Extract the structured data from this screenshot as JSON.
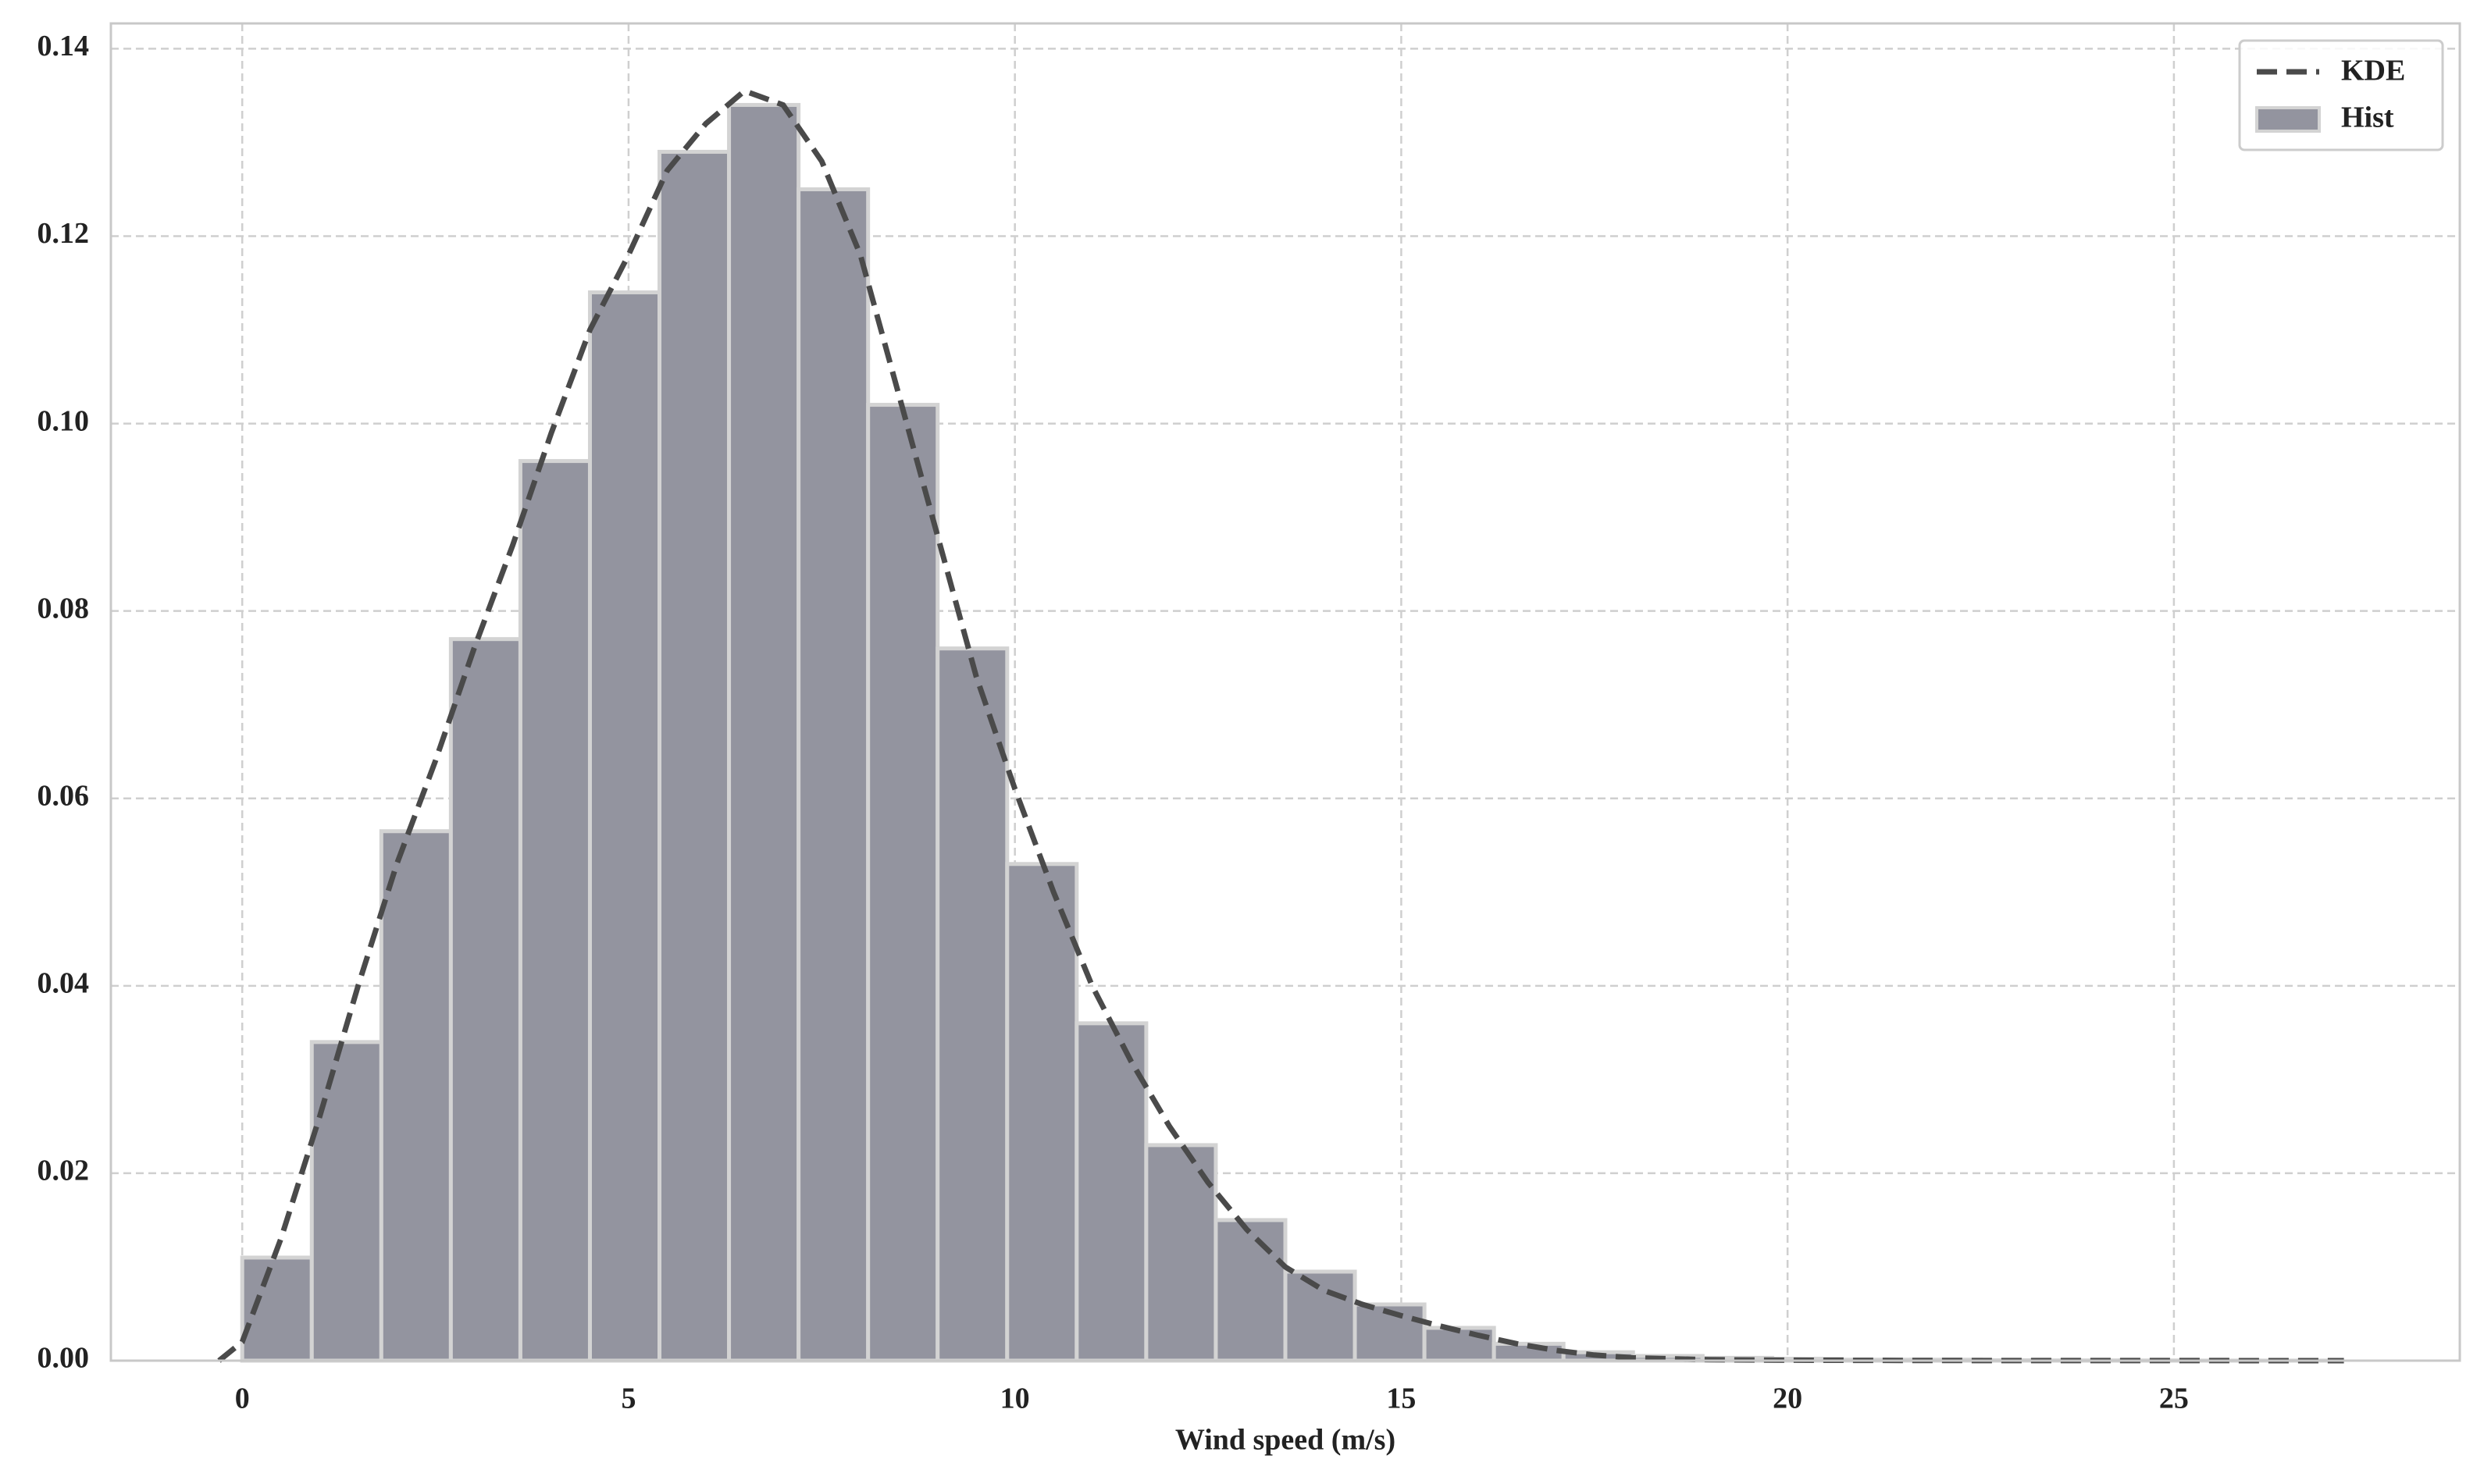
{
  "chart_data": {
    "type": "histogram",
    "xlabel": "Wind speed (m/s)",
    "xlim": [
      -1.7,
      28.7
    ],
    "ylim": [
      0,
      0.1427
    ],
    "xticks": [
      0,
      5,
      10,
      15,
      20,
      25
    ],
    "yticks": [
      {
        "value": 0,
        "label": "0.00"
      },
      {
        "value": 0.02,
        "label": "0.02"
      },
      {
        "value": 0.04,
        "label": "0.04"
      },
      {
        "value": 0.06,
        "label": "0.06"
      },
      {
        "value": 0.08,
        "label": "0.08"
      },
      {
        "value": 0.1,
        "label": "0.10"
      },
      {
        "value": 0.12,
        "label": "0.12"
      },
      {
        "value": 0.14,
        "label": "0.14"
      }
    ],
    "grid": true,
    "legend": "upper right",
    "hist": {
      "name": "Hist",
      "color": "#93949f",
      "edgecolor": "#d3d3d3",
      "bins": [
        0,
        0.9,
        1.8,
        2.7,
        3.6,
        4.5,
        5.4,
        6.3,
        7.2,
        8.1,
        9,
        9.9,
        10.8,
        11.7,
        12.6,
        13.5,
        14.4,
        15.3,
        16.2,
        17.1,
        18,
        18.9,
        19.8,
        20.7,
        21.6,
        22.5,
        23.4,
        24.3,
        25.2,
        26.1,
        27
      ],
      "values": [
        0.011,
        0.034,
        0.0565,
        0.077,
        0.096,
        0.114,
        0.129,
        0.134,
        0.125,
        0.102,
        0.076,
        0.053,
        0.036,
        0.023,
        0.015,
        0.0095,
        0.006,
        0.0035,
        0.0018,
        0.0009,
        0.0005,
        0.0003,
        0.0002,
        0.0001,
        0.0001,
        5e-05,
        3e-05,
        2e-05,
        1e-05,
        1e-05
      ]
    },
    "kde": {
      "name": "KDE",
      "color": "#4a4a4a",
      "x": [
        -0.3,
        0,
        0.5,
        1,
        1.5,
        2,
        2.5,
        3,
        3.5,
        4,
        4.5,
        5,
        5.5,
        6,
        6.5,
        7,
        7.5,
        8,
        8.5,
        9,
        9.5,
        10,
        10.5,
        11,
        11.5,
        12,
        12.5,
        13,
        13.5,
        14,
        14.5,
        15,
        15.5,
        16,
        16.5,
        17,
        17.5,
        18,
        19,
        20,
        22,
        25,
        27.2
      ],
      "values": [
        0,
        0.002,
        0.013,
        0.026,
        0.04,
        0.053,
        0.064,
        0.076,
        0.087,
        0.099,
        0.11,
        0.118,
        0.127,
        0.132,
        0.1355,
        0.134,
        0.128,
        0.118,
        0.103,
        0.088,
        0.073,
        0.061,
        0.05,
        0.04,
        0.032,
        0.025,
        0.019,
        0.014,
        0.01,
        0.0075,
        0.006,
        0.0048,
        0.0037,
        0.0027,
        0.0018,
        0.0011,
        0.0006,
        0.0003,
        0.0001,
        5e-05,
        2e-05,
        1e-05,
        0
      ]
    }
  }
}
